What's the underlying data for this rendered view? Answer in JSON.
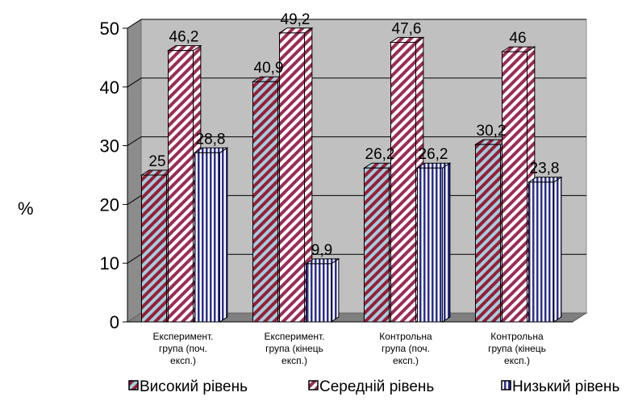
{
  "chart_data": {
    "type": "bar",
    "ylabel": "%",
    "ylim": [
      0,
      50
    ],
    "y_ticks": [
      0,
      10,
      20,
      30,
      40,
      50
    ],
    "grid": true,
    "legend_position": "bottom",
    "categories": [
      [
        "Експеримент.",
        "група (поч.",
        "експ.)"
      ],
      [
        "Експеримент.",
        "група (кінець",
        "експ.)"
      ],
      [
        "Контрольна",
        "група (поч.",
        "експ.)"
      ],
      [
        "Контрольна",
        "група (кінець",
        "експ.)"
      ]
    ],
    "series": [
      {
        "name": "Високий рівень",
        "values": [
          25,
          40.9,
          26.2,
          30.2
        ],
        "labels": [
          "25",
          "40,9",
          "26,2",
          "30,2"
        ],
        "color": "#a0cfe0",
        "stripe": "#9b1d33",
        "pattern": "diag"
      },
      {
        "name": "Середній рівень",
        "values": [
          46.2,
          49.2,
          47.6,
          46
        ],
        "labels": [
          "46,2",
          "49,2",
          "47,6",
          "46"
        ],
        "color": "#ffffff",
        "stripe": "#9b2c55",
        "pattern": "diag"
      },
      {
        "name": "Низький рівень",
        "values": [
          28.8,
          9.9,
          26.2,
          23.8
        ],
        "labels": [
          "28,8",
          "9,9",
          "26,2",
          "23,8"
        ],
        "color": "#ffffff",
        "stripe": "#2a2f8f",
        "pattern": "vert"
      }
    ]
  }
}
